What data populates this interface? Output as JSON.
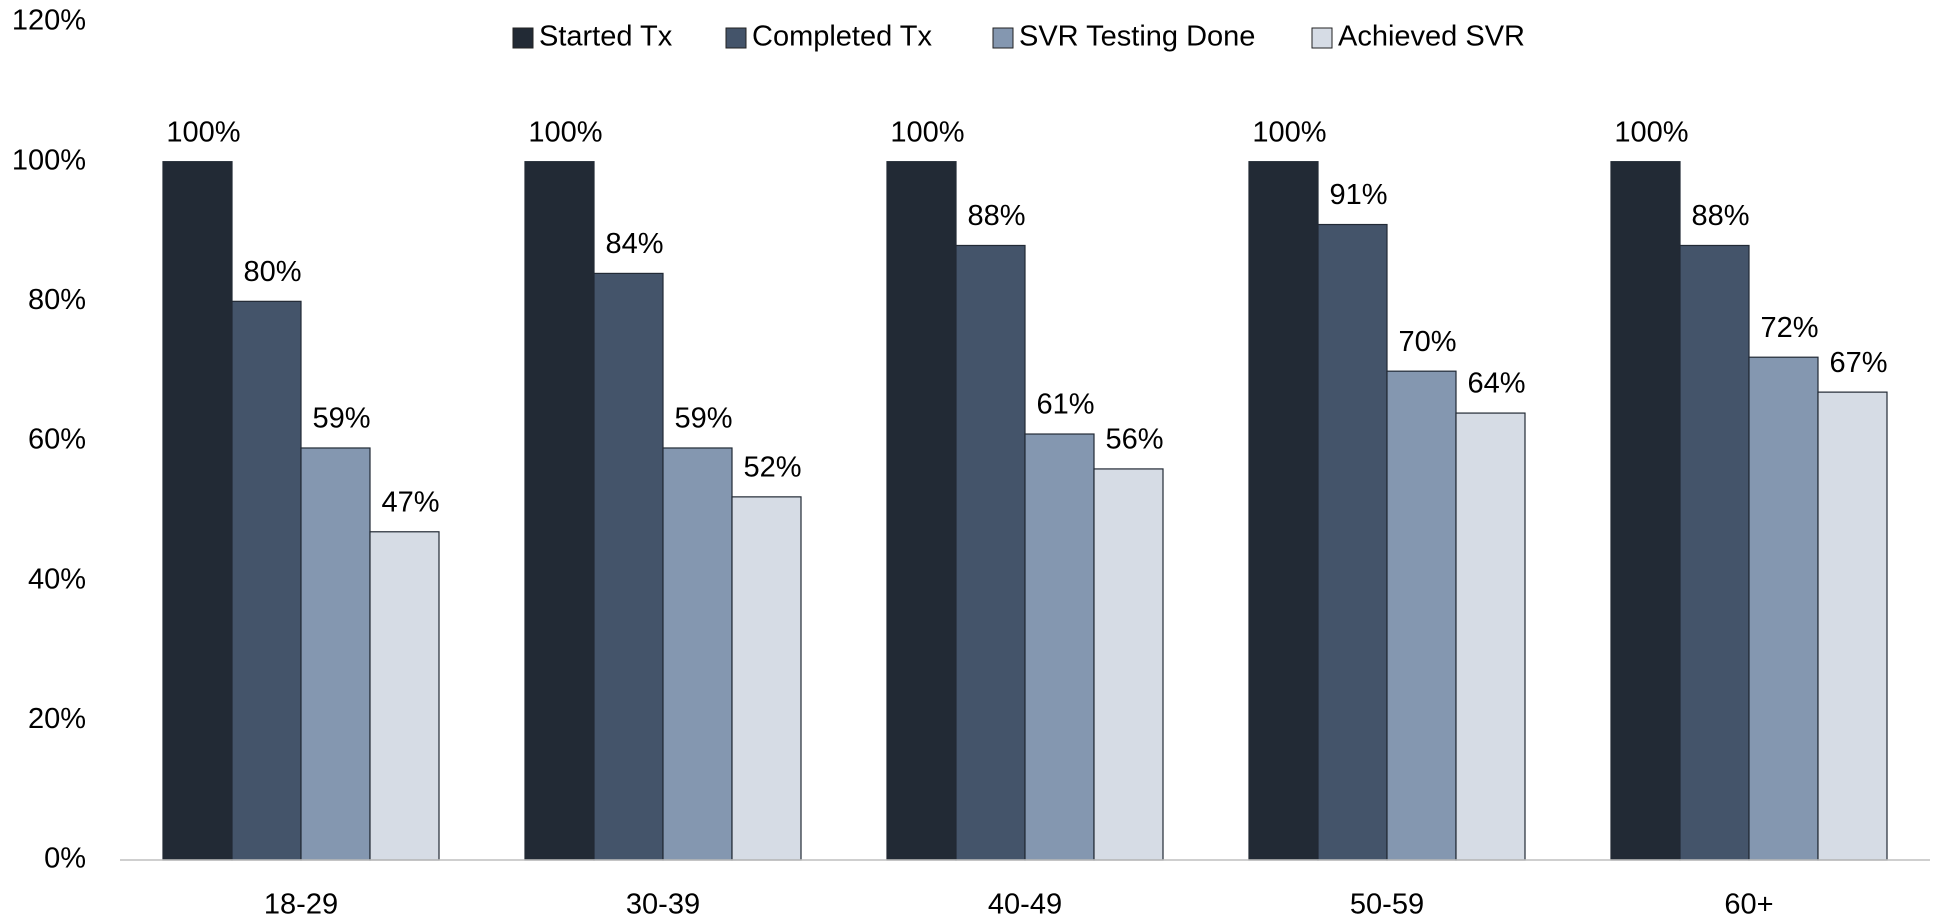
{
  "chart_data": {
    "type": "bar",
    "categories": [
      "18-29",
      "30-39",
      "40-49",
      "50-59",
      "60+"
    ],
    "series": [
      {
        "name": "Started Tx",
        "color": "#222a35",
        "values": [
          100,
          100,
          100,
          100,
          100
        ],
        "value_labels": [
          "100%",
          "100%",
          "100%",
          "100%",
          "100%"
        ]
      },
      {
        "name": "Completed Tx",
        "color": "#44546a",
        "values": [
          80,
          84,
          88,
          91,
          88
        ],
        "value_labels": [
          "80%",
          "84%",
          "88%",
          "91%",
          "88%"
        ]
      },
      {
        "name": "SVR Testing Done",
        "color": "#8497b0",
        "values": [
          59,
          59,
          61,
          70,
          72
        ],
        "value_labels": [
          "59%",
          "59%",
          "61%",
          "70%",
          "72%"
        ]
      },
      {
        "name": "Achieved SVR",
        "color": "#d6dce5",
        "values": [
          47,
          52,
          56,
          64,
          67
        ],
        "value_labels": [
          "47%",
          "52%",
          "56%",
          "64%",
          "67%"
        ]
      }
    ],
    "ylim": [
      0,
      120
    ],
    "yticks": [
      {
        "value": 0,
        "label": "0%"
      },
      {
        "value": 20,
        "label": "20%"
      },
      {
        "value": 40,
        "label": "40%"
      },
      {
        "value": 60,
        "label": "60%"
      },
      {
        "value": 80,
        "label": "80%"
      },
      {
        "value": 100,
        "label": "100%"
      },
      {
        "value": 120,
        "label": "120%"
      }
    ],
    "grid": false,
    "legend": "top"
  }
}
